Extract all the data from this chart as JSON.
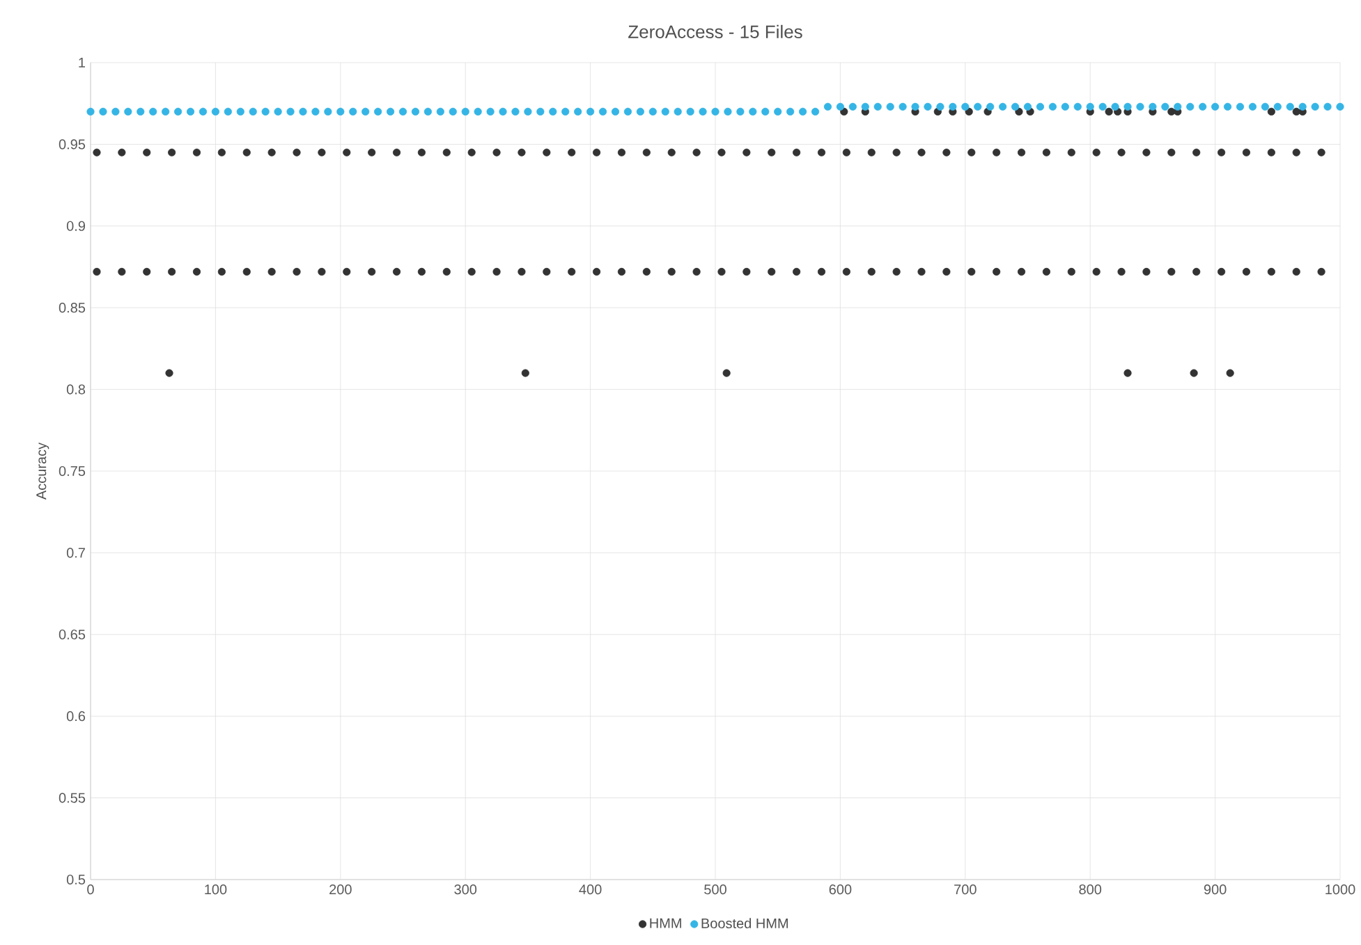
{
  "chart_data": {
    "type": "scatter",
    "title": "ZeroAccess - 15 Files",
    "ylabel": "Accuracy",
    "xlim": [
      0,
      1000
    ],
    "xticks": [
      0,
      100,
      200,
      300,
      400,
      500,
      600,
      700,
      800,
      900,
      1000
    ],
    "ylim": [
      0.5,
      1
    ],
    "yticks": [
      0.5,
      0.55,
      0.6,
      0.65,
      0.7,
      0.75,
      0.8,
      0.85,
      0.9,
      0.95,
      1
    ],
    "grid": true,
    "legend": "bottom",
    "marker": "circle",
    "series": [
      {
        "name": "HMM",
        "color": "#333333",
        "x": [
          5,
          25,
          45,
          65,
          85,
          105,
          125,
          145,
          165,
          185,
          205,
          225,
          245,
          265,
          285,
          305,
          325,
          345,
          365,
          385,
          405,
          425,
          445,
          465,
          485,
          505,
          525,
          545,
          565,
          585,
          605,
          625,
          645,
          665,
          685,
          705,
          725,
          745,
          765,
          785,
          805,
          825,
          845,
          865,
          885,
          905,
          925,
          945,
          965,
          985,
          5,
          25,
          45,
          65,
          85,
          105,
          125,
          145,
          165,
          185,
          205,
          225,
          245,
          265,
          285,
          305,
          325,
          345,
          365,
          385,
          405,
          425,
          445,
          465,
          485,
          505,
          525,
          545,
          565,
          585,
          605,
          625,
          645,
          665,
          685,
          705,
          725,
          745,
          765,
          785,
          805,
          825,
          845,
          865,
          885,
          905,
          925,
          945,
          965,
          985,
          63,
          348,
          509,
          830,
          883,
          912,
          603,
          620,
          660,
          678,
          690,
          703,
          718,
          743,
          752,
          800,
          815,
          822,
          830,
          850,
          865,
          870,
          945,
          965,
          970
        ],
        "values": [
          0.945,
          0.945,
          0.945,
          0.945,
          0.945,
          0.945,
          0.945,
          0.945,
          0.945,
          0.945,
          0.945,
          0.945,
          0.945,
          0.945,
          0.945,
          0.945,
          0.945,
          0.945,
          0.945,
          0.945,
          0.945,
          0.945,
          0.945,
          0.945,
          0.945,
          0.945,
          0.945,
          0.945,
          0.945,
          0.945,
          0.945,
          0.945,
          0.945,
          0.945,
          0.945,
          0.945,
          0.945,
          0.945,
          0.945,
          0.945,
          0.945,
          0.945,
          0.945,
          0.945,
          0.945,
          0.945,
          0.945,
          0.945,
          0.945,
          0.945,
          0.872,
          0.872,
          0.872,
          0.872,
          0.872,
          0.872,
          0.872,
          0.872,
          0.872,
          0.872,
          0.872,
          0.872,
          0.872,
          0.872,
          0.872,
          0.872,
          0.872,
          0.872,
          0.872,
          0.872,
          0.872,
          0.872,
          0.872,
          0.872,
          0.872,
          0.872,
          0.872,
          0.872,
          0.872,
          0.872,
          0.872,
          0.872,
          0.872,
          0.872,
          0.872,
          0.872,
          0.872,
          0.872,
          0.872,
          0.872,
          0.872,
          0.872,
          0.872,
          0.872,
          0.872,
          0.872,
          0.872,
          0.872,
          0.872,
          0.872,
          0.81,
          0.81,
          0.81,
          0.81,
          0.81,
          0.81,
          0.97,
          0.97,
          0.97,
          0.97,
          0.97,
          0.97,
          0.97,
          0.97,
          0.97,
          0.97,
          0.97,
          0.97,
          0.97,
          0.97,
          0.97,
          0.97,
          0.97,
          0.97,
          0.97
        ]
      },
      {
        "name": "Boosted HMM",
        "color": "#35b5e5",
        "x": [
          0,
          10,
          20,
          30,
          40,
          50,
          60,
          70,
          80,
          90,
          100,
          110,
          120,
          130,
          140,
          150,
          160,
          170,
          180,
          190,
          200,
          210,
          220,
          230,
          240,
          250,
          260,
          270,
          280,
          290,
          300,
          310,
          320,
          330,
          340,
          350,
          360,
          370,
          380,
          390,
          400,
          410,
          420,
          430,
          440,
          450,
          460,
          470,
          480,
          490,
          500,
          510,
          520,
          530,
          540,
          550,
          560,
          570,
          580,
          590,
          600,
          610,
          620,
          630,
          640,
          650,
          660,
          670,
          680,
          690,
          700,
          710,
          720,
          730,
          740,
          750,
          760,
          770,
          780,
          790,
          800,
          810,
          820,
          830,
          840,
          850,
          860,
          870,
          880,
          890,
          900,
          910,
          920,
          930,
          940,
          950,
          960,
          970,
          980,
          990,
          1000
        ],
        "values": [
          0.97,
          0.97,
          0.97,
          0.97,
          0.97,
          0.97,
          0.97,
          0.97,
          0.97,
          0.97,
          0.97,
          0.97,
          0.97,
          0.97,
          0.97,
          0.97,
          0.97,
          0.97,
          0.97,
          0.97,
          0.97,
          0.97,
          0.97,
          0.97,
          0.97,
          0.97,
          0.97,
          0.97,
          0.97,
          0.97,
          0.97,
          0.97,
          0.97,
          0.97,
          0.97,
          0.97,
          0.97,
          0.97,
          0.97,
          0.97,
          0.97,
          0.97,
          0.97,
          0.97,
          0.97,
          0.97,
          0.97,
          0.97,
          0.97,
          0.97,
          0.97,
          0.97,
          0.97,
          0.97,
          0.97,
          0.97,
          0.97,
          0.97,
          0.97,
          0.973,
          0.973,
          0.973,
          0.973,
          0.973,
          0.973,
          0.973,
          0.973,
          0.973,
          0.973,
          0.973,
          0.973,
          0.973,
          0.973,
          0.973,
          0.973,
          0.973,
          0.973,
          0.973,
          0.973,
          0.973,
          0.973,
          0.973,
          0.973,
          0.973,
          0.973,
          0.973,
          0.973,
          0.973,
          0.973,
          0.973,
          0.973,
          0.973,
          0.973,
          0.973,
          0.973,
          0.973,
          0.973,
          0.973,
          0.973,
          0.973,
          0.973
        ]
      }
    ]
  }
}
